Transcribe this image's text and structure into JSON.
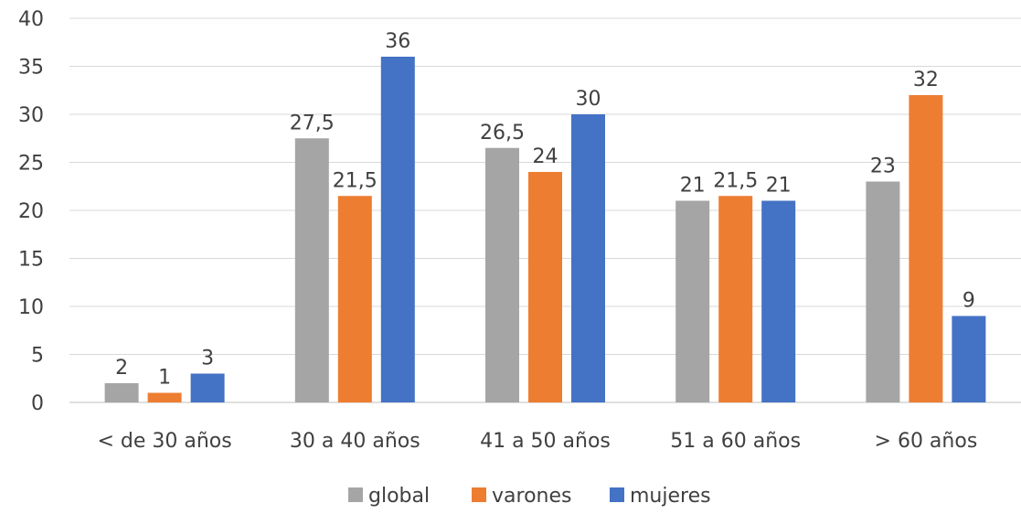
{
  "chart_data": {
    "type": "bar",
    "categories": [
      "< de 30 años",
      "30 a 40 años",
      "41 a 50 años",
      "51 a 60 años",
      "> 60 años"
    ],
    "series": [
      {
        "name": "global",
        "color": "#A5A5A5",
        "values": [
          2,
          27.5,
          26.5,
          21,
          23
        ]
      },
      {
        "name": "varones",
        "color": "#ED7D31",
        "values": [
          1,
          21.5,
          24,
          21.5,
          32
        ]
      },
      {
        "name": "mujeres",
        "color": "#4472C4",
        "values": [
          3,
          36,
          30,
          21,
          9
        ]
      }
    ],
    "data_labels": [
      [
        "2",
        "27,5",
        "26,5",
        "21",
        "23"
      ],
      [
        "1",
        "21,5",
        "24",
        "21,5",
        "32"
      ],
      [
        "3",
        "36",
        "30",
        "21",
        "9"
      ]
    ],
    "ylim": [
      0,
      40
    ],
    "y_ticks": [
      0,
      5,
      10,
      15,
      20,
      25,
      30,
      35,
      40
    ],
    "grid": true,
    "legend": "bottom",
    "title": "",
    "xlabel": "",
    "ylabel": ""
  }
}
